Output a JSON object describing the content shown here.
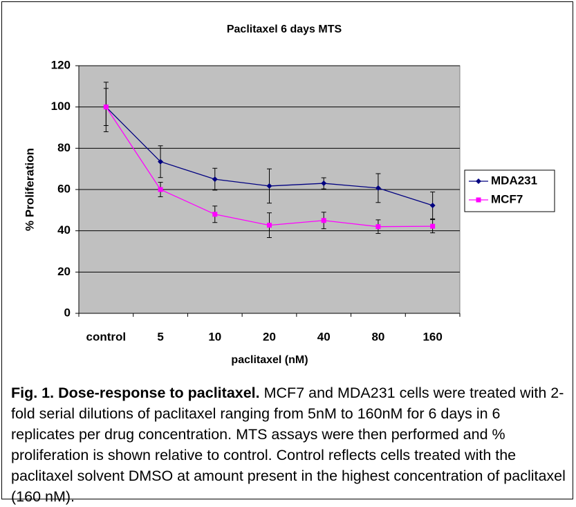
{
  "chart_data": {
    "type": "line",
    "title": "Paclitaxel 6 days MTS",
    "x_label": "paclitaxel (nM)",
    "y_label": "% Proliferation",
    "categories": [
      "control",
      "5",
      "10",
      "20",
      "40",
      "80",
      "160"
    ],
    "series": [
      {
        "name": "MDA231",
        "color": "#000080",
        "marker": "diamond",
        "values": [
          100,
          73.5,
          65,
          61.7,
          63,
          60.7,
          52.3
        ],
        "errors": [
          9,
          7.7,
          5.3,
          8.3,
          2.7,
          7,
          6.5
        ]
      },
      {
        "name": "MCF7",
        "color": "#ff00ff",
        "marker": "square",
        "values": [
          100,
          60,
          48,
          42.7,
          45,
          42,
          42.2
        ],
        "errors": [
          12,
          3.5,
          4,
          6,
          4,
          3.3,
          3.2
        ]
      }
    ],
    "ylim": [
      0,
      120
    ],
    "yticks": [
      0,
      20,
      40,
      60,
      80,
      100,
      120
    ],
    "grid": true,
    "legend": "right"
  },
  "caption": {
    "label": "Fig. 1. Dose-response to paclitaxel.",
    "text": "MCF7 and MDA231 cells were treated with 2-fold serial dilutions of paclitaxel ranging from 5nM to 160nM for 6 days in 6 replicates per drug concentration. MTS assays were then performed and % proliferation is shown relative to control. Control reflects cells treated with the paclitaxel solvent DMSO at amount present in the highest concentration of paclitaxel (160 nM)."
  }
}
